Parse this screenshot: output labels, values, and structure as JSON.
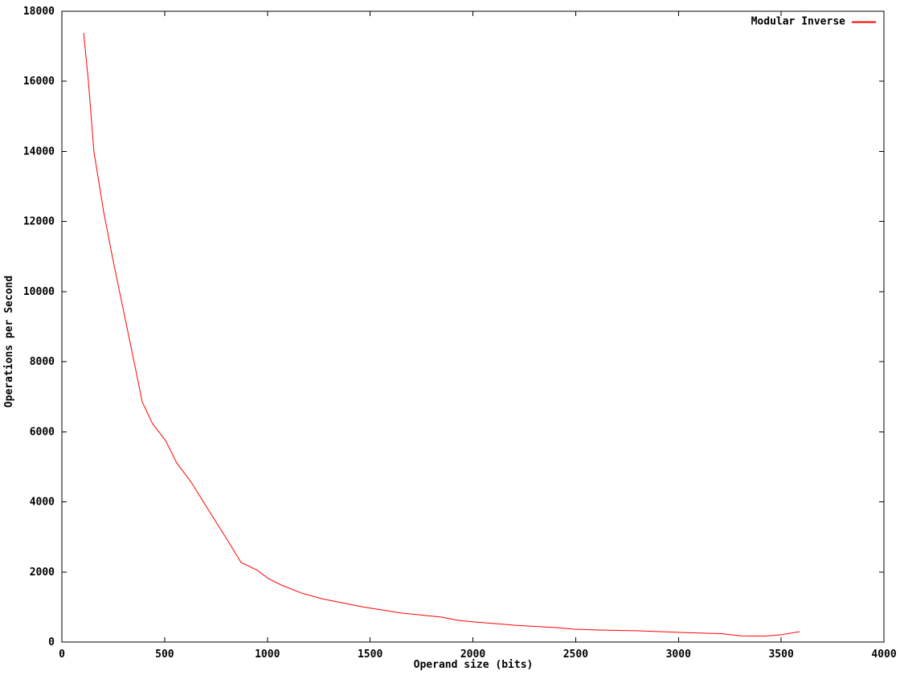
{
  "chart": {
    "xlabel": "Operand size (bits)",
    "ylabel": "Operations per Second",
    "legend": {
      "label": "Modular Inverse"
    }
  },
  "colors": {
    "background": "#ffffff",
    "axis": "#000000",
    "series": "#ff0000"
  },
  "chart_data": {
    "type": "line",
    "title": "",
    "xlabel": "Operand size (bits)",
    "ylabel": "Operations per Second",
    "xlim": [
      0,
      4000
    ],
    "ylim": [
      0,
      18000
    ],
    "xticks": [
      0,
      500,
      1000,
      1500,
      2000,
      2500,
      3000,
      3500,
      4000
    ],
    "yticks": [
      0,
      2000,
      4000,
      6000,
      8000,
      10000,
      12000,
      14000,
      16000,
      18000
    ],
    "grid": false,
    "legend_position": "top-right-inside",
    "series": [
      {
        "name": "Modular Inverse",
        "color": "#ff0000",
        "points": [
          [
            106,
            17380
          ],
          [
            129,
            16000
          ],
          [
            156,
            13990
          ],
          [
            203,
            12290
          ],
          [
            246,
            10985
          ],
          [
            305,
            9310
          ],
          [
            356,
            7865
          ],
          [
            391,
            6855
          ],
          [
            440,
            6240
          ],
          [
            504,
            5755
          ],
          [
            560,
            5100
          ],
          [
            629,
            4565
          ],
          [
            704,
            3855
          ],
          [
            805,
            2915
          ],
          [
            872,
            2270
          ],
          [
            950,
            2050
          ],
          [
            1005,
            1810
          ],
          [
            1067,
            1628
          ],
          [
            1165,
            1400
          ],
          [
            1263,
            1238
          ],
          [
            1458,
            1009
          ],
          [
            1654,
            826
          ],
          [
            1849,
            711
          ],
          [
            1927,
            619
          ],
          [
            2006,
            573
          ],
          [
            2205,
            480
          ],
          [
            2404,
            413
          ],
          [
            2494,
            367
          ],
          [
            2608,
            345
          ],
          [
            2807,
            320
          ],
          [
            3006,
            275
          ],
          [
            3206,
            240
          ],
          [
            3310,
            175
          ],
          [
            3420,
            170
          ],
          [
            3495,
            205
          ],
          [
            3589,
            295
          ]
        ]
      }
    ]
  }
}
